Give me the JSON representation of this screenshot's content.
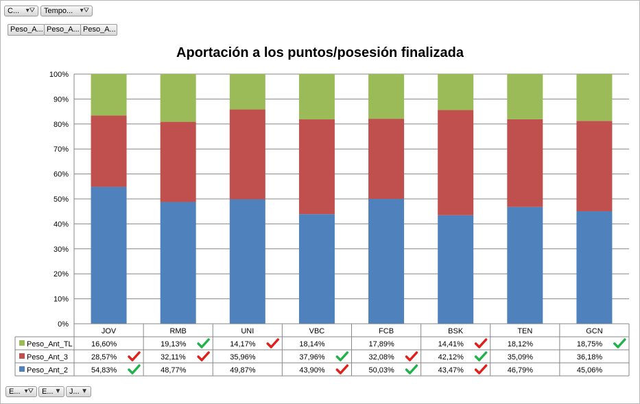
{
  "filters_top": [
    {
      "label": "C...",
      "icon": "filter-icon"
    },
    {
      "label": "Tempo...",
      "icon": "filter-icon"
    }
  ],
  "series_buttons": [
    "Peso_A...",
    "Peso_A...",
    "Peso_A..."
  ],
  "filters_bottom": [
    {
      "label": "E...",
      "icon": "filter-icon"
    },
    {
      "label": "E...",
      "icon": "chevron-down-icon"
    },
    {
      "label": "J...",
      "icon": "chevron-down-icon"
    }
  ],
  "colors": {
    "Peso_Ant_2": "#4f81bd",
    "Peso_Ant_3": "#c0504d",
    "Peso_Ant_TL": "#9bbb59",
    "check_green": "#22b24c",
    "check_red": "#e0201b"
  },
  "chart_data": {
    "type": "bar",
    "stacked": "percent",
    "title": "Aportación a los puntos/posesión finalizada",
    "categories": [
      "JOV",
      "RMB",
      "UNI",
      "VBC",
      "FCB",
      "BSK",
      "TEN",
      "GCN"
    ],
    "y_ticks": [
      "0%",
      "10%",
      "20%",
      "30%",
      "40%",
      "50%",
      "60%",
      "70%",
      "80%",
      "90%",
      "100%"
    ],
    "ylim": [
      0,
      100
    ],
    "grid": true,
    "legend": "data-table",
    "series": [
      {
        "name": "Peso_Ant_2",
        "values": [
          54.83,
          48.77,
          49.87,
          43.9,
          50.03,
          43.47,
          46.79,
          45.06
        ],
        "labels": [
          "54,83%",
          "48,77%",
          "49,87%",
          "43,90%",
          "50,03%",
          "43,47%",
          "46,79%",
          "45,06%"
        ],
        "marks": [
          "check-green",
          "",
          "",
          "check-red",
          "check-green",
          "check-red",
          "",
          ""
        ]
      },
      {
        "name": "Peso_Ant_3",
        "values": [
          28.57,
          32.11,
          35.96,
          37.96,
          32.08,
          42.12,
          35.09,
          36.18
        ],
        "labels": [
          "28,57%",
          "32,11%",
          "35,96%",
          "37,96%",
          "32,08%",
          "42,12%",
          "35,09%",
          "36,18%"
        ],
        "marks": [
          "check-red",
          "check-red",
          "",
          "check-green",
          "check-red",
          "check-green",
          "",
          ""
        ]
      },
      {
        "name": "Peso_Ant_TL",
        "values": [
          16.6,
          19.13,
          14.17,
          18.14,
          17.89,
          14.41,
          18.12,
          18.75
        ],
        "labels": [
          "16,60%",
          "19,13%",
          "14,17%",
          "18,14%",
          "17,89%",
          "14,41%",
          "18,12%",
          "18,75%"
        ],
        "marks": [
          "",
          "check-green",
          "check-red",
          "",
          "",
          "check-red",
          "",
          "check-green"
        ]
      }
    ]
  }
}
